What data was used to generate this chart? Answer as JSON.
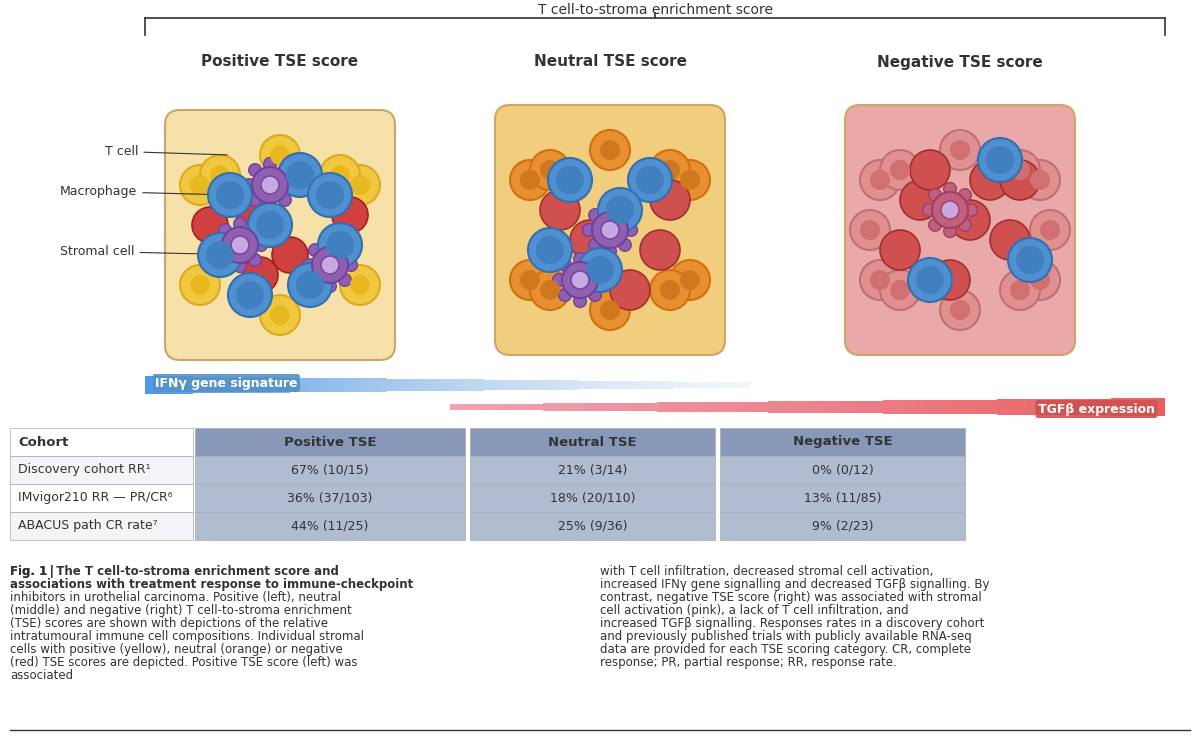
{
  "title_bracket": "T cell-to-stroma enrichment score",
  "panel_titles": [
    "Positive TSE score",
    "Neutral TSE score",
    "Negative TSE score"
  ],
  "labels": [
    "T cell",
    "Macrophage",
    "Stromal cell"
  ],
  "ifn_label": "IFNγ gene signature",
  "tgf_label": "TGFβ expression",
  "table_header": [
    "Cohort",
    "Positive TSE",
    "Neutral TSE",
    "Negative TSE"
  ],
  "table_rows": [
    [
      "Discovery cohort RR¹",
      "67% (10/15)",
      "21% (3/14)",
      "0% (0/12)"
    ],
    [
      "IMvigor210 RR — PR/CR⁶",
      "36% (37/103)",
      "18% (20/110)",
      "13% (11/85)"
    ],
    [
      "ABACUS path CR rate⁷",
      "44% (11/25)",
      "25% (9/36)",
      "9% (2/23)"
    ]
  ],
  "table_col_colors": [
    "#ffffff",
    "#b8c4d8",
    "#c5cde0",
    "#c5cde0"
  ],
  "table_row_bg": [
    "#f0f0f0",
    "#ffffff",
    "#f0f0f0"
  ],
  "cell_bg_positive": "#b0bbcc",
  "cell_bg_neutral": "#bbc5d8",
  "cell_bg_negative": "#bbc5d8",
  "fig_caption_bold": "Fig. 1 | The T cell-to-stroma enrichment score and associations with treatment response to immune-checkpoint inhibitors in urothelial carcinoma.",
  "fig_caption_normal_left": " Positive (left), neutral (middle) and negative (right) T cell-to-stroma enrichment (TSE) scores are shown with depictions of the relative intratumoural immune cell compositions. Individual stromal cells with positive (yellow), neutral (orange) or negative (red) TSE scores are depicted. Positive TSE score (left) was associated",
  "fig_caption_normal_right": "with T cell infiltration, decreased stromal cell activation, increased IFNγ gene signalling and decreased TGFβ signalling. By contrast, negative TSE score (right) was associated with stromal cell activation (pink), a lack of T cell infiltration, and increased TGFβ signalling. Responses rates in a discovery cohort and previously published trials with publicly available RNA-seq data are provided for each TSE scoring category. CR, complete response; PR, partial response; RR, response rate.",
  "bg_color": "#ffffff",
  "border_color": "#333333",
  "ifn_color_start": "#6aafe6",
  "ifn_color_end": "#add8e6",
  "tgf_color_start": "#f0c0b0",
  "tgf_color_end": "#e87070"
}
